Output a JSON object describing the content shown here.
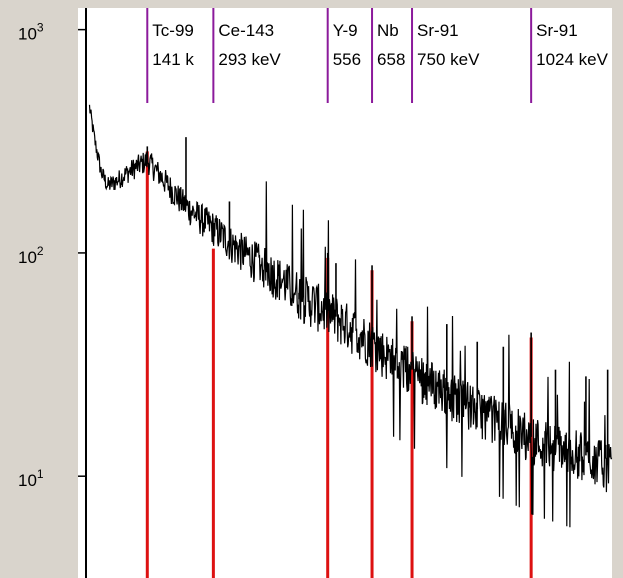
{
  "colors": {
    "frame": "#d9d4cc",
    "plot_background": "#ffffff",
    "spectrum": "#000000",
    "peak_marker": "#dd1111",
    "label_marker": "#8b1a9b"
  },
  "chart_data": {
    "type": "line",
    "title": "",
    "xlabel": "",
    "ylabel": "",
    "y_scale": "log",
    "ylim": [
      3.5,
      1250
    ],
    "xlim_keV": [
      0,
      1210
    ],
    "grid": false,
    "y_ticks": [
      {
        "value": 1000,
        "base": "10",
        "exp": "3"
      },
      {
        "value": 100,
        "base": "10",
        "exp": "2"
      },
      {
        "value": 10,
        "base": "10",
        "exp": "1"
      }
    ],
    "series": [
      {
        "points": [
          [
            8,
            450
          ],
          [
            20,
            320
          ],
          [
            35,
            230
          ],
          [
            50,
            200
          ],
          [
            70,
            210
          ],
          [
            90,
            225
          ],
          [
            110,
            240
          ],
          [
            141,
            260
          ],
          [
            165,
            230
          ],
          [
            190,
            200
          ],
          [
            220,
            170
          ],
          [
            250,
            150
          ],
          [
            293,
            130
          ],
          [
            340,
            108
          ],
          [
            400,
            90
          ],
          [
            450,
            76
          ],
          [
            500,
            64
          ],
          [
            556,
            55
          ],
          [
            600,
            48
          ],
          [
            658,
            40
          ],
          [
            700,
            34
          ],
          [
            750,
            30
          ],
          [
            800,
            26
          ],
          [
            850,
            23
          ],
          [
            900,
            20
          ],
          [
            950,
            18
          ],
          [
            1000,
            16
          ],
          [
            1024,
            15
          ],
          [
            1070,
            14
          ],
          [
            1120,
            13
          ],
          [
            1170,
            12
          ],
          [
            1210,
            11
          ]
        ],
        "spikes": [
          {
            "keV": 141,
            "value": 300
          },
          {
            "keV": 230,
            "value": 330
          },
          {
            "keV": 293,
            "value": 110
          },
          {
            "keV": 330,
            "value": 170
          },
          {
            "keV": 420,
            "value": 85
          },
          {
            "keV": 490,
            "value": 62
          },
          {
            "keV": 556,
            "value": 100
          },
          {
            "keV": 575,
            "value": 90
          },
          {
            "keV": 610,
            "value": 42
          },
          {
            "keV": 658,
            "value": 88
          },
          {
            "keV": 750,
            "value": 52
          },
          {
            "keV": 830,
            "value": 48
          },
          {
            "keV": 900,
            "value": 40
          },
          {
            "keV": 960,
            "value": 38
          },
          {
            "keV": 1024,
            "value": 44
          },
          {
            "keV": 1080,
            "value": 30
          },
          {
            "keV": 1150,
            "value": 28
          },
          {
            "keV": 1200,
            "value": 30
          }
        ]
      }
    ],
    "peaks": [
      {
        "nuclide": "Tc-99",
        "energy": "141 k",
        "keV": 141
      },
      {
        "nuclide": "Ce-143",
        "energy": "293 keV",
        "keV": 293
      },
      {
        "nuclide": "Y-9",
        "energy": "556",
        "keV": 556
      },
      {
        "nuclide": "Nb",
        "energy": "658",
        "keV": 658
      },
      {
        "nuclide": "Sr-91",
        "energy": "750 keV",
        "keV": 750
      },
      {
        "nuclide": "Sr-91",
        "energy": "1024 keV",
        "keV": 1024
      }
    ]
  }
}
